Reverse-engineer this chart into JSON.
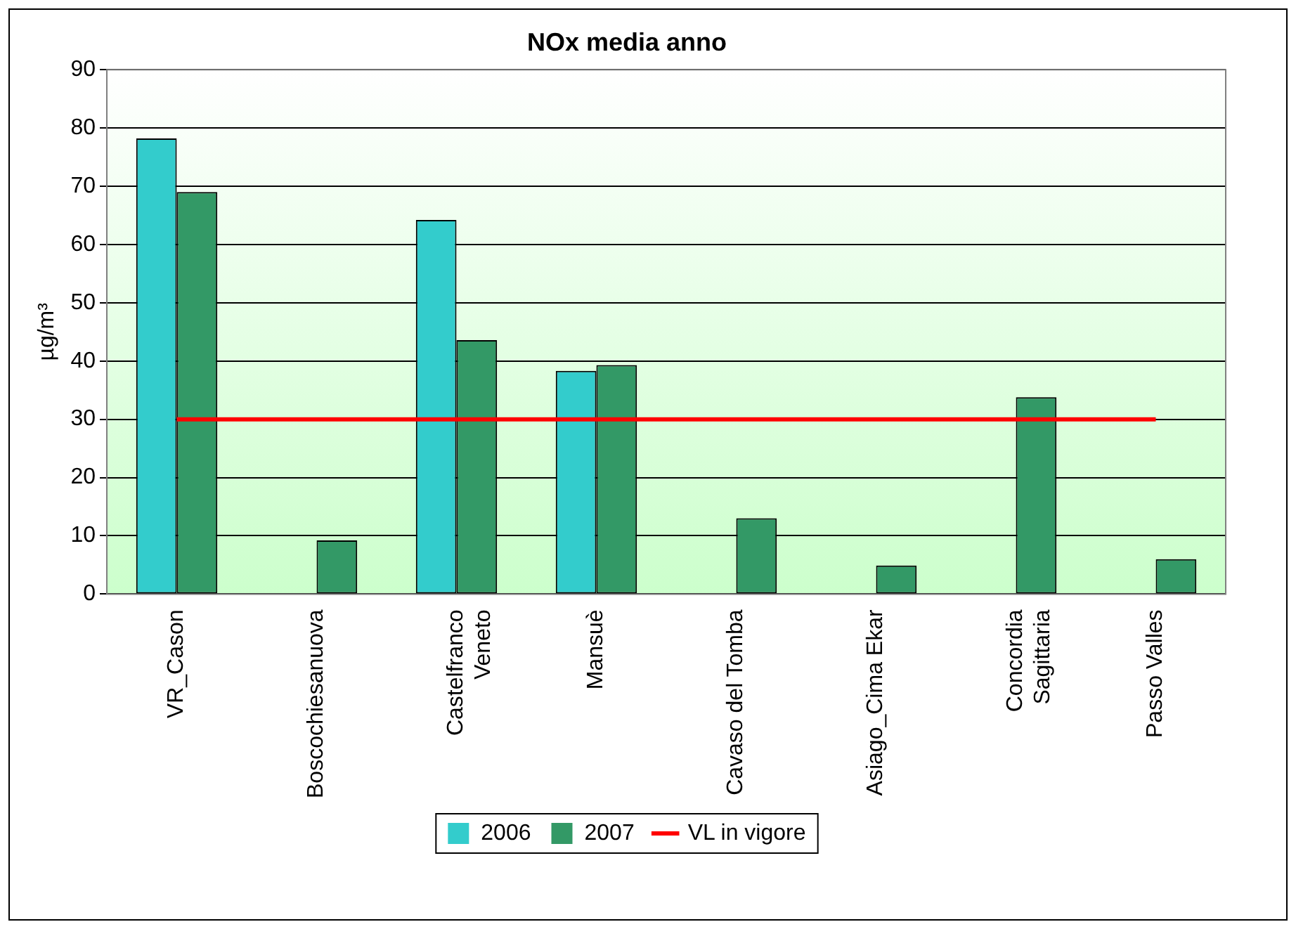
{
  "chart_data": {
    "type": "bar",
    "title": "NOx media anno",
    "ylabel": "µg/m³",
    "categories": [
      "VR_Cason",
      "Boscochiesanuova",
      "Castelfranco\nVeneto",
      "Mansuè",
      "Cavaso del Tomba",
      "Asiago_Cima Ekar",
      "Concordia\nSagittaria",
      "Passo Valles"
    ],
    "series": [
      {
        "name": "2006",
        "color": "#33cccc",
        "values": [
          78.2,
          null,
          64.2,
          38.3,
          null,
          null,
          null,
          null
        ]
      },
      {
        "name": "2007",
        "color": "#339966",
        "values": [
          69,
          9.2,
          43.6,
          39.3,
          13,
          4.9,
          33.8,
          6
        ]
      },
      {
        "name": "VL in vigore",
        "type": "line",
        "color": "#ff0000",
        "marker": "none",
        "values": [
          30,
          30,
          30,
          30,
          30,
          30,
          30,
          30
        ]
      }
    ],
    "ylim": [
      0,
      90
    ],
    "yticks": [
      0,
      10,
      20,
      30,
      40,
      50,
      60,
      70,
      80,
      90
    ],
    "grid": "y",
    "legend": "bottom"
  }
}
